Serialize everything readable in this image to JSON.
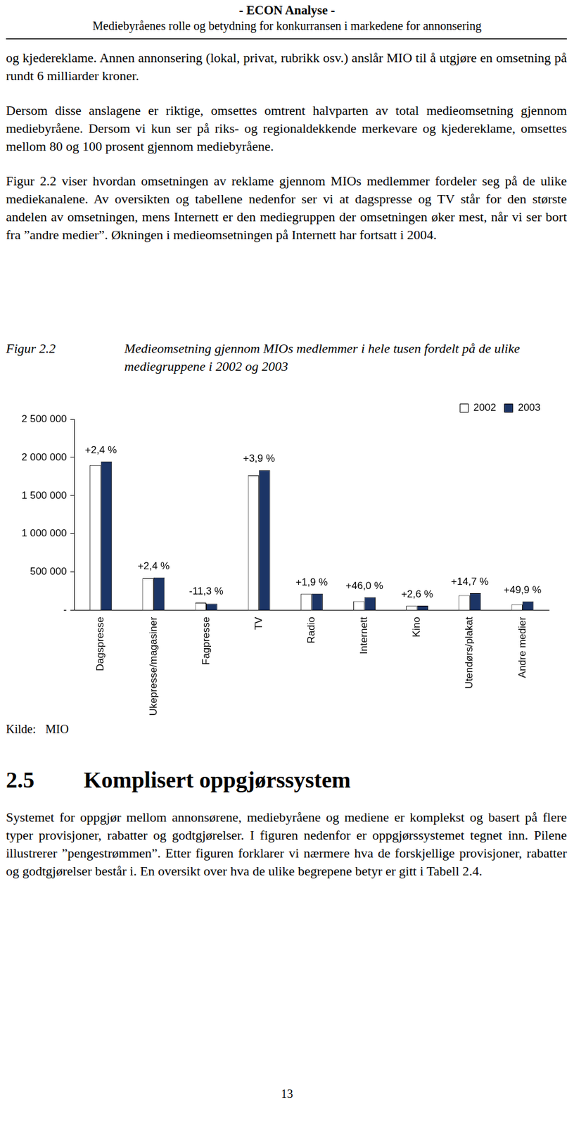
{
  "header": {
    "title": "- ECON Analyse -",
    "subtitle": "Mediebyråenes rolle og betydning for konkurransen i markedene for annonsering"
  },
  "paragraphs": [
    "og kjedereklame. Annen annonsering (lokal, privat, rubrikk osv.) anslår MIO til å utgjøre en omsetning på rundt 6 milliarder kroner.",
    "Dersom disse anslagene er riktige, omsettes omtrent halvparten av total medieomsetning gjennom mediebyråene. Dersom vi kun ser på riks- og regionaldekkende merkevare og kjedereklame, omsettes mellom 80 og 100 prosent gjennom mediebyråene.",
    "Figur 2.2 viser hvordan omsetningen av reklame gjennom MIOs medlemmer fordeler seg på de ulike mediekanalene. Av oversikten og tabellene nedenfor ser vi at dagspresse og TV står for den største andelen av omsetningen, mens Internett er den mediegruppen der omsetningen øker mest, når vi ser bort fra ”andre medier”. Økningen i medieomsetningen på Internett har fortsatt i 2004."
  ],
  "figure": {
    "label": "Figur 2.2",
    "caption": "Medieomsetning gjennom MIOs medlemmer i hele tusen fordelt på de ulike mediegruppene i 2002 og 2003"
  },
  "chart_data": {
    "type": "bar",
    "categories": [
      "Dagspresse",
      "Ukepresse/magasiner",
      "Fagpresse",
      "TV",
      "Radio",
      "Internett",
      "Kino",
      "Utendørs/plakat",
      "Andre medier"
    ],
    "series": [
      {
        "name": "2002",
        "color": "#ffffff",
        "values": [
          1900000,
          420000,
          98000,
          1765000,
          215000,
          118000,
          58000,
          196000,
          78000
        ]
      },
      {
        "name": "2003",
        "color": "#1c3566",
        "values": [
          1945000,
          430000,
          87000,
          1834000,
          219000,
          172000,
          60000,
          225000,
          117000
        ]
      }
    ],
    "annotations": [
      {
        "category": "Dagspresse",
        "text": "+2,4 %"
      },
      {
        "category": "Ukepresse/magasiner",
        "text": "+2,4 %"
      },
      {
        "category": "Fagpresse",
        "text": "-11,3 %"
      },
      {
        "category": "TV",
        "text": "+3,9 %"
      },
      {
        "category": "Radio",
        "text": "+1,9 %"
      },
      {
        "category": "Internett",
        "text": "+46,0 %"
      },
      {
        "category": "Kino",
        "text": "+2,6 %"
      },
      {
        "category": "Utendørs/plakat",
        "text": "+14,7 %"
      },
      {
        "category": "Andre medier",
        "text": "+49,9 %"
      }
    ],
    "ylim": [
      0,
      2500000
    ],
    "yticks": [
      {
        "value": 0,
        "label": "-"
      },
      {
        "value": 500000,
        "label": "500 000"
      },
      {
        "value": 1000000,
        "label": "1 000 000"
      },
      {
        "value": 1500000,
        "label": "1 500 000"
      },
      {
        "value": 2000000,
        "label": "2 000 000"
      },
      {
        "value": 2500000,
        "label": "2 500 000"
      }
    ],
    "grid": false,
    "legend": "top-right"
  },
  "source": {
    "label": "Kilde:",
    "value": "MIO"
  },
  "section": {
    "number": "2.5",
    "title": "Komplisert oppgjørssystem"
  },
  "closing_paragraph": "Systemet for oppgjør mellom annonsørene, mediebyråene og mediene er komplekst og basert på flere typer provisjoner, rabatter og godtgjørelser. I figuren nedenfor er oppgjørssystemet tegnet inn. Pilene illustrerer ”pengestrømmen”. Etter figuren forklarer vi nærmere hva de forskjellige provisjoner, rabatter og godtgjørelser består i. En oversikt over hva de ulike begrepene betyr er gitt i Tabell 2.4.",
  "page_number": "13"
}
